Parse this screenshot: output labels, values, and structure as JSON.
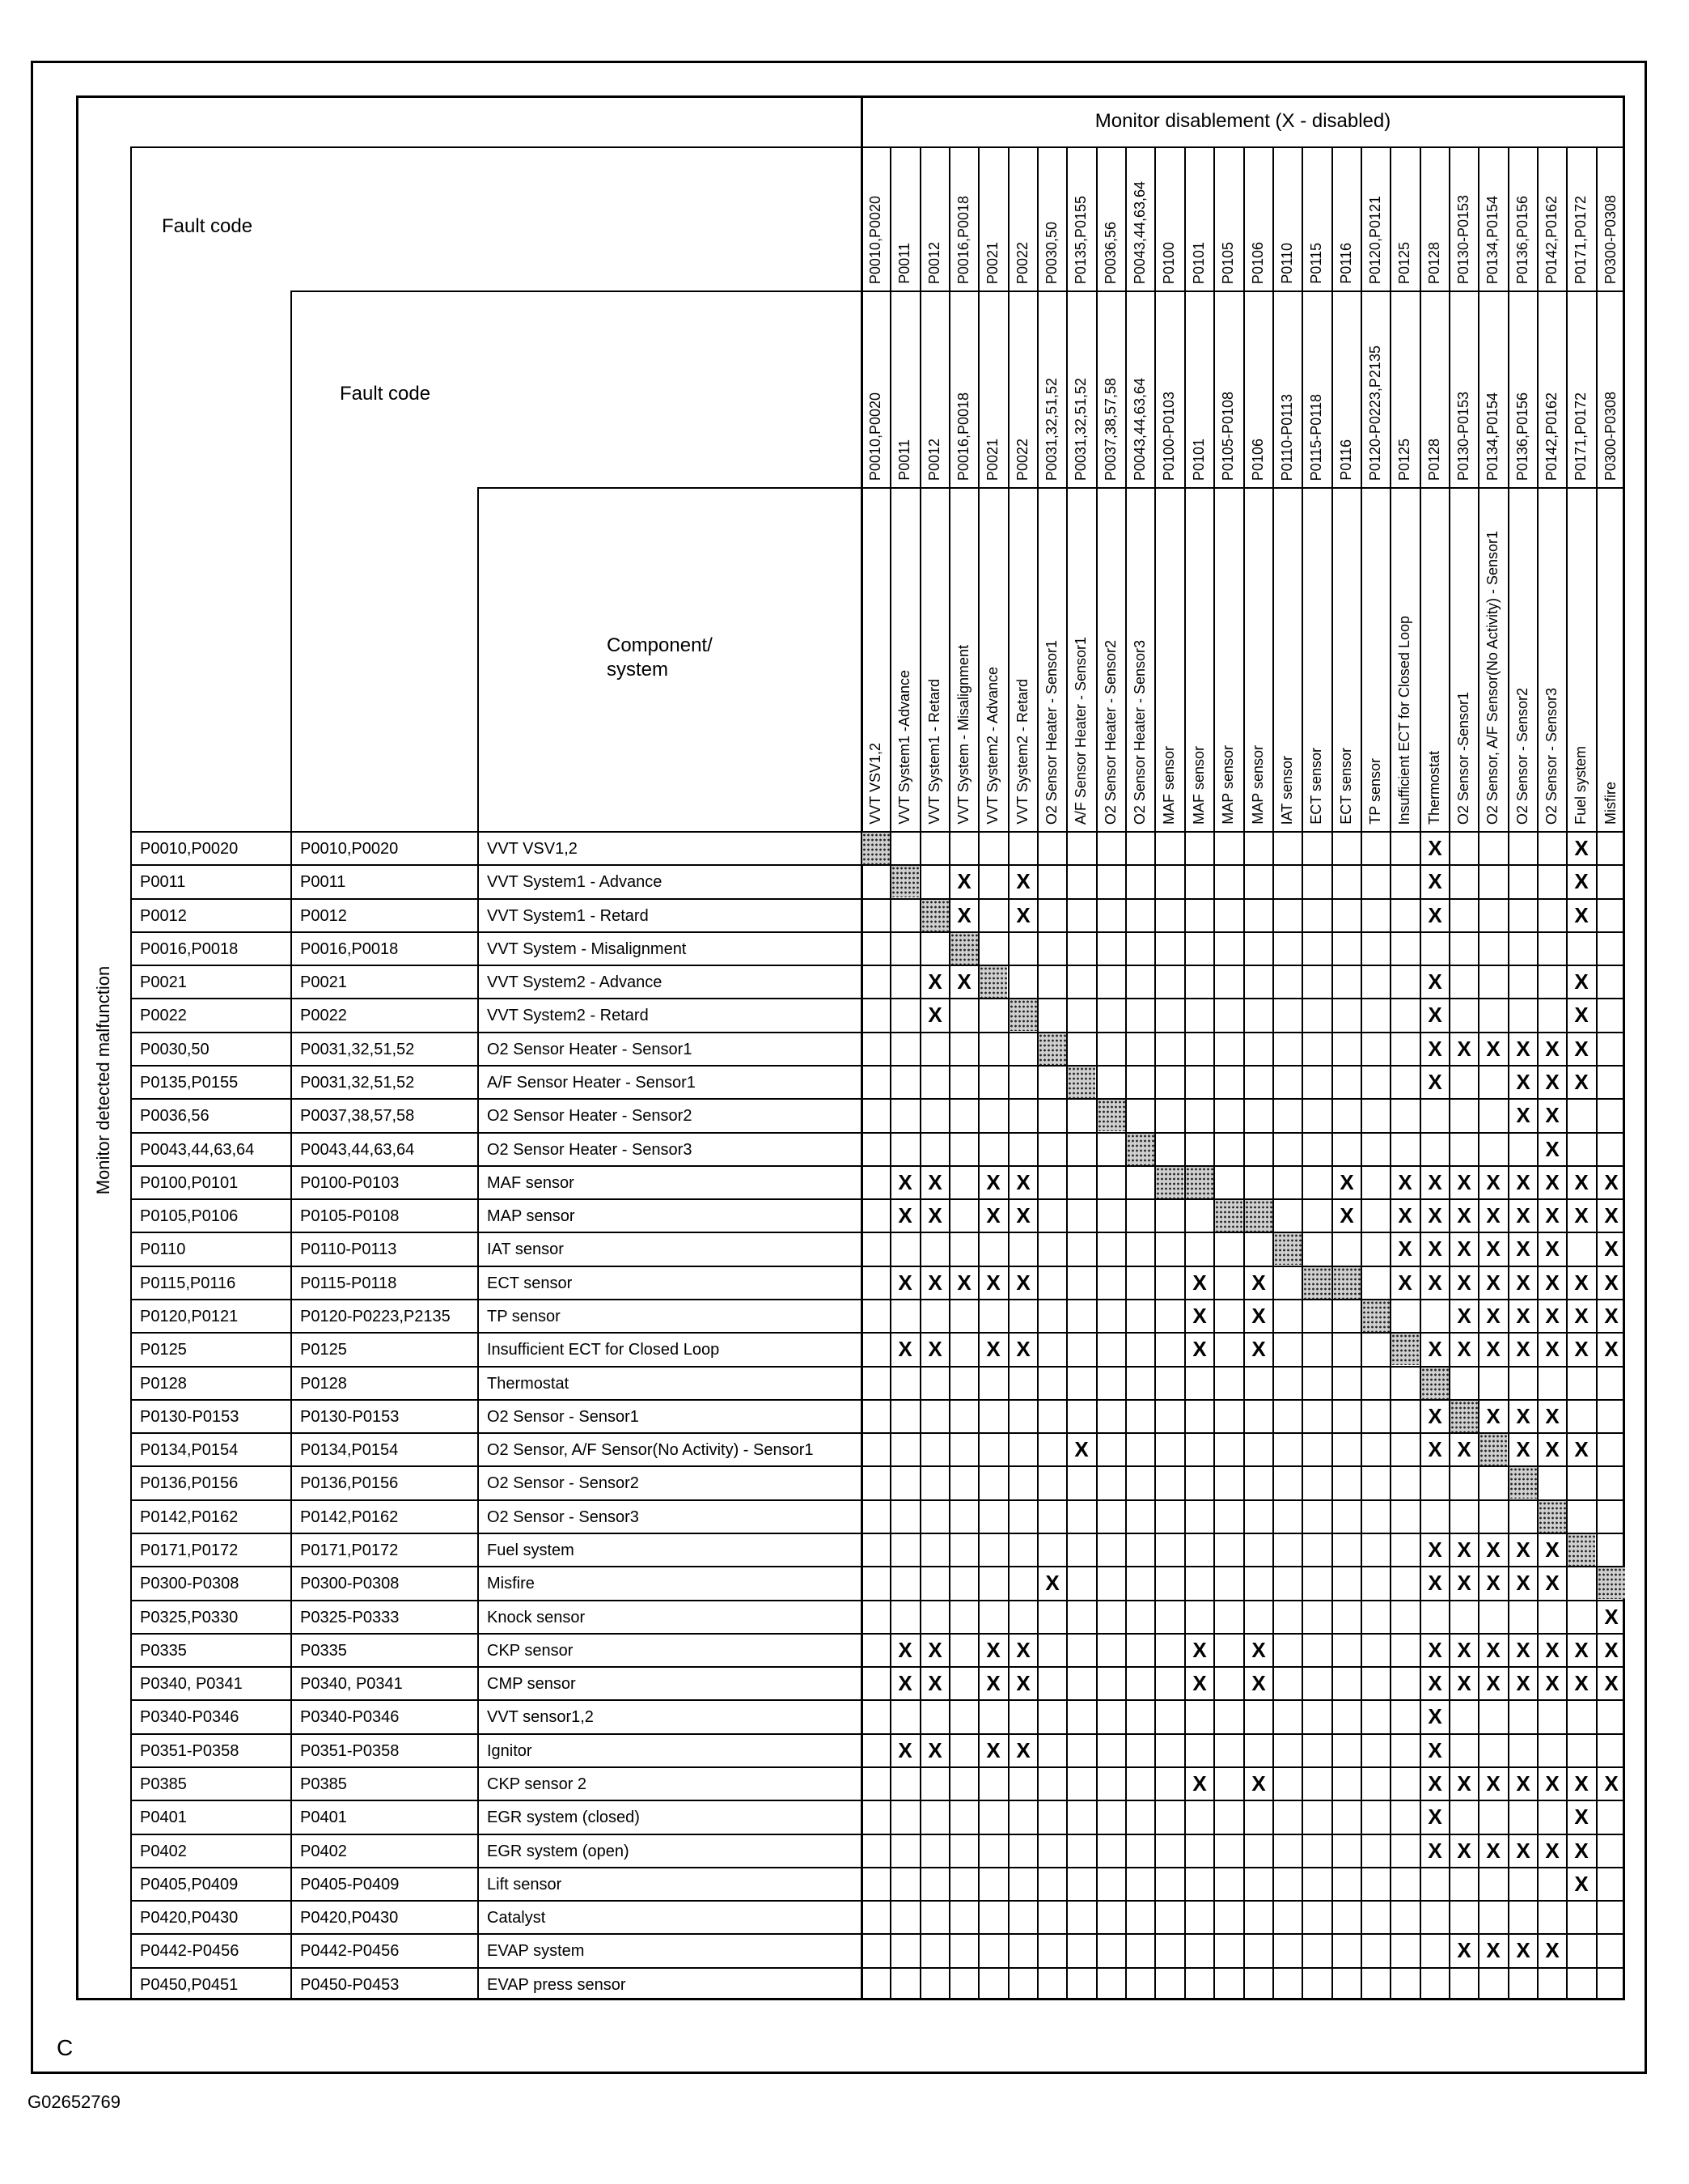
{
  "monitor_header": "Monitor disablement (X - disabled)",
  "fault_code_label_1": "Fault code",
  "fault_code_label_2": "Fault code",
  "component_label": "Component/\nsystem",
  "row_axis_label": "Monitor detected malfunction",
  "corner_letter": "C",
  "figure_id": "G02652769",
  "mark_symbol": "X",
  "columns": [
    {
      "code": "P0010,P0020",
      "range": "P0010,P0020",
      "component": "VVT VSV1,2"
    },
    {
      "code": "P0011",
      "range": "P0011",
      "component": "VVT System1 -Advance"
    },
    {
      "code": "P0012",
      "range": "P0012",
      "component": "VVT System1 - Retard"
    },
    {
      "code": "P0016,P0018",
      "range": "P0016,P0018",
      "component": "VVT System - Misalignment"
    },
    {
      "code": "P0021",
      "range": "P0021",
      "component": "VVT System2 - Advance"
    },
    {
      "code": "P0022",
      "range": "P0022",
      "component": "VVT System2 - Retard"
    },
    {
      "code": "P0030,50",
      "range": "P0031,32,51,52",
      "component": "O2 Sensor Heater - Sensor1"
    },
    {
      "code": "P0135,P0155",
      "range": "P0031,32,51,52",
      "component": "A/F Sensor Heater - Sensor1"
    },
    {
      "code": "P0036,56",
      "range": "P0037,38,57,58",
      "component": "O2 Sensor Heater - Sensor2"
    },
    {
      "code": "P0043,44,63,64",
      "range": "P0043,44,63,64",
      "component": "O2 Sensor Heater - Sensor3"
    },
    {
      "code": "P0100",
      "range": "P0100-P0103",
      "component": "MAF sensor"
    },
    {
      "code": "P0101",
      "range": "P0101",
      "component": "MAF sensor"
    },
    {
      "code": "P0105",
      "range": "P0105-P0108",
      "component": "MAP sensor"
    },
    {
      "code": "P0106",
      "range": "P0106",
      "component": "MAP sensor"
    },
    {
      "code": "P0110",
      "range": "P0110-P0113",
      "component": "IAT sensor"
    },
    {
      "code": "P0115",
      "range": "P0115-P0118",
      "component": "ECT sensor"
    },
    {
      "code": "P0116",
      "range": "P0116",
      "component": "ECT sensor"
    },
    {
      "code": "P0120,P0121",
      "range": "P0120-P0223,P2135",
      "component": "TP sensor"
    },
    {
      "code": "P0125",
      "range": "P0125",
      "component": "Insufficient ECT for Closed Loop"
    },
    {
      "code": "P0128",
      "range": "P0128",
      "component": "Thermostat"
    },
    {
      "code": "P0130-P0153",
      "range": "P0130-P0153",
      "component": "O2 Sensor -Sensor1"
    },
    {
      "code": "P0134,P0154",
      "range": "P0134,P0154",
      "component": "O2 Sensor, A/F Sensor(No Activity) - Sensor1"
    },
    {
      "code": "P0136,P0156",
      "range": "P0136,P0156",
      "component": "O2 Sensor - Sensor2"
    },
    {
      "code": "P0142,P0162",
      "range": "P0142,P0162",
      "component": "O2 Sensor - Sensor3"
    },
    {
      "code": "P0171,P0172",
      "range": "P0171,P0172",
      "component": "Fuel system"
    },
    {
      "code": "P0300-P0308",
      "range": "P0300-P0308",
      "component": "Misfire"
    }
  ],
  "rows": [
    {
      "code": "P0010,P0020",
      "range": "P0010,P0020",
      "component": "VVT VSV1,2",
      "shaded": [
        0
      ],
      "x": [
        19,
        24
      ]
    },
    {
      "code": "P0011",
      "range": "P0011",
      "component": "VVT System1 - Advance",
      "shaded": [
        1
      ],
      "x": [
        3,
        5,
        19,
        24
      ]
    },
    {
      "code": "P0012",
      "range": "P0012",
      "component": "VVT System1 - Retard",
      "shaded": [
        2
      ],
      "x": [
        3,
        5,
        19,
        24
      ]
    },
    {
      "code": "P0016,P0018",
      "range": "P0016,P0018",
      "component": "VVT System - Misalignment",
      "shaded": [
        3
      ],
      "x": []
    },
    {
      "code": "P0021",
      "range": "P0021",
      "component": "VVT System2 - Advance",
      "shaded": [
        4
      ],
      "x": [
        2,
        3,
        19,
        24
      ]
    },
    {
      "code": "P0022",
      "range": "P0022",
      "component": "VVT System2 - Retard",
      "shaded": [
        5
      ],
      "x": [
        2,
        19,
        24
      ]
    },
    {
      "code": "P0030,50",
      "range": "P0031,32,51,52",
      "component": "O2 Sensor Heater - Sensor1",
      "shaded": [
        6
      ],
      "x": [
        19,
        20,
        21,
        22,
        23,
        24
      ]
    },
    {
      "code": "P0135,P0155",
      "range": "P0031,32,51,52",
      "component": "A/F Sensor Heater  - Sensor1",
      "shaded": [
        7
      ],
      "x": [
        19,
        22,
        23,
        24
      ]
    },
    {
      "code": "P0036,56",
      "range": "P0037,38,57,58",
      "component": "O2 Sensor Heater - Sensor2",
      "shaded": [
        8
      ],
      "x": [
        22,
        23
      ]
    },
    {
      "code": "P0043,44,63,64",
      "range": "P0043,44,63,64",
      "component": "O2 Sensor Heater - Sensor3",
      "shaded": [
        9
      ],
      "x": [
        23
      ]
    },
    {
      "code": "P0100,P0101",
      "range": "P0100-P0103",
      "component": "MAF sensor",
      "shaded": [
        10,
        11
      ],
      "x": [
        1,
        2,
        4,
        5,
        16,
        18,
        19,
        20,
        21,
        22,
        23,
        24,
        25
      ]
    },
    {
      "code": "P0105,P0106",
      "range": "P0105-P0108",
      "component": "MAP sensor",
      "shaded": [
        12,
        13
      ],
      "x": [
        1,
        2,
        4,
        5,
        16,
        18,
        19,
        20,
        21,
        22,
        23,
        24,
        25
      ]
    },
    {
      "code": "P0110",
      "range": "P0110-P0113",
      "component": "IAT sensor",
      "shaded": [
        14
      ],
      "x": [
        18,
        19,
        20,
        21,
        22,
        23,
        25
      ]
    },
    {
      "code": "P0115,P0116",
      "range": "P0115-P0118",
      "component": "ECT sensor",
      "shaded": [
        15,
        16
      ],
      "x": [
        1,
        2,
        3,
        4,
        5,
        11,
        13,
        18,
        19,
        20,
        21,
        22,
        23,
        24,
        25
      ]
    },
    {
      "code": "P0120,P0121",
      "range": "P0120-P0223,P2135",
      "component": "TP sensor",
      "shaded": [
        17
      ],
      "x": [
        11,
        13,
        20,
        21,
        22,
        23,
        24,
        25
      ]
    },
    {
      "code": "P0125",
      "range": "P0125",
      "component": "Insufficient ECT for Closed Loop",
      "shaded": [
        18
      ],
      "x": [
        1,
        2,
        4,
        5,
        11,
        13,
        19,
        20,
        21,
        22,
        23,
        24,
        25
      ]
    },
    {
      "code": "P0128",
      "range": "P0128",
      "component": "Thermostat",
      "shaded": [
        19
      ],
      "x": []
    },
    {
      "code": "P0130-P0153",
      "range": "P0130-P0153",
      "component": "O2 Sensor - Sensor1",
      "shaded": [
        20
      ],
      "x": [
        19,
        21,
        22,
        23
      ]
    },
    {
      "code": "P0134,P0154",
      "range": "P0134,P0154",
      "component": "O2 Sensor, A/F Sensor(No Activity) - Sensor1",
      "shaded": [
        21
      ],
      "x": [
        7,
        19,
        20,
        22,
        23,
        24
      ]
    },
    {
      "code": "P0136,P0156",
      "range": "P0136,P0156",
      "component": "O2 Sensor - Sensor2",
      "shaded": [
        22
      ],
      "x": []
    },
    {
      "code": "P0142,P0162",
      "range": "P0142,P0162",
      "component": "O2 Sensor - Sensor3",
      "shaded": [
        23
      ],
      "x": []
    },
    {
      "code": "P0171,P0172",
      "range": "P0171,P0172",
      "component": "Fuel system",
      "shaded": [
        24
      ],
      "x": [
        19,
        20,
        21,
        22,
        23
      ]
    },
    {
      "code": "P0300-P0308",
      "range": "P0300-P0308",
      "component": "Misfire",
      "shaded": [
        25
      ],
      "x": [
        6,
        19,
        20,
        21,
        22,
        23
      ]
    },
    {
      "code": "P0325,P0330",
      "range": "P0325-P0333",
      "component": "Knock sensor",
      "shaded": [],
      "x": [
        25
      ]
    },
    {
      "code": "P0335",
      "range": "P0335",
      "component": "CKP sensor",
      "shaded": [],
      "x": [
        1,
        2,
        4,
        5,
        11,
        13,
        19,
        20,
        21,
        22,
        23,
        24,
        25
      ]
    },
    {
      "code": "P0340, P0341",
      "range": "P0340, P0341",
      "component": "CMP sensor",
      "shaded": [],
      "x": [
        1,
        2,
        4,
        5,
        11,
        13,
        19,
        20,
        21,
        22,
        23,
        24,
        25
      ]
    },
    {
      "code": "P0340-P0346",
      "range": "P0340-P0346",
      "component": "VVT sensor1,2",
      "shaded": [],
      "x": [
        19
      ]
    },
    {
      "code": "P0351-P0358",
      "range": "P0351-P0358",
      "component": "Ignitor",
      "shaded": [],
      "x": [
        1,
        2,
        4,
        5,
        19
      ]
    },
    {
      "code": "P0385",
      "range": "P0385",
      "component": "CKP sensor 2",
      "shaded": [],
      "x": [
        11,
        13,
        19,
        20,
        21,
        22,
        23,
        24,
        25
      ]
    },
    {
      "code": "P0401",
      "range": "P0401",
      "component": "EGR system (closed)",
      "shaded": [],
      "x": [
        19,
        24
      ]
    },
    {
      "code": "P0402",
      "range": "P0402",
      "component": "EGR system (open)",
      "shaded": [],
      "x": [
        19,
        20,
        21,
        22,
        23,
        24
      ]
    },
    {
      "code": "P0405,P0409",
      "range": "P0405-P0409",
      "component": "Lift sensor",
      "shaded": [],
      "x": [
        24
      ]
    },
    {
      "code": "P0420,P0430",
      "range": "P0420,P0430",
      "component": "Catalyst",
      "shaded": [],
      "x": []
    },
    {
      "code": "P0442-P0456",
      "range": "P0442-P0456",
      "component": "EVAP system",
      "shaded": [],
      "x": [
        20,
        21,
        22,
        23
      ]
    },
    {
      "code": "P0450,P0451",
      "range": "P0450-P0453",
      "component": "EVAP press sensor",
      "shaded": [],
      "x": []
    }
  ]
}
